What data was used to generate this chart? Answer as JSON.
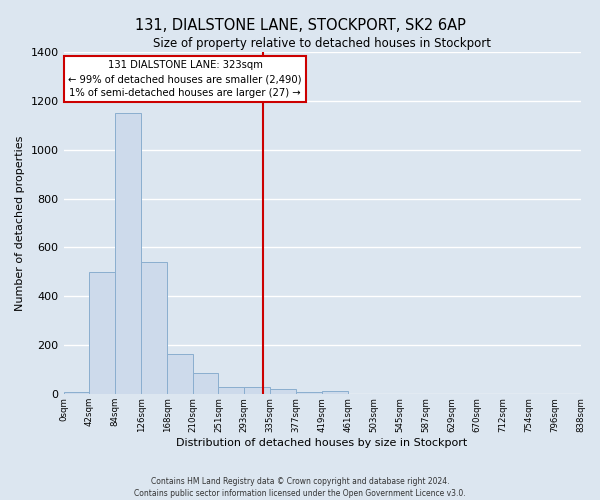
{
  "title": "131, DIALSTONE LANE, STOCKPORT, SK2 6AP",
  "subtitle": "Size of property relative to detached houses in Stockport",
  "xlabel": "Distribution of detached houses by size in Stockport",
  "ylabel": "Number of detached properties",
  "bar_edges": [
    0,
    42,
    84,
    126,
    168,
    210,
    251,
    293,
    335,
    377,
    419,
    461,
    503,
    545,
    587,
    629,
    670,
    712,
    754,
    796,
    838
  ],
  "bar_heights": [
    10,
    500,
    1150,
    540,
    165,
    85,
    28,
    28,
    22,
    10,
    12,
    0,
    0,
    0,
    0,
    0,
    0,
    0,
    0,
    0
  ],
  "tick_labels": [
    "0sqm",
    "42sqm",
    "84sqm",
    "126sqm",
    "168sqm",
    "210sqm",
    "251sqm",
    "293sqm",
    "335sqm",
    "377sqm",
    "419sqm",
    "461sqm",
    "503sqm",
    "545sqm",
    "587sqm",
    "629sqm",
    "670sqm",
    "712sqm",
    "754sqm",
    "796sqm",
    "838sqm"
  ],
  "bar_color": "#cddaeb",
  "bar_edge_color": "#8aaecf",
  "vline_x": 323,
  "vline_color": "#cc0000",
  "annotation_title": "131 DIALSTONE LANE: 323sqm",
  "annotation_line1": "← 99% of detached houses are smaller (2,490)",
  "annotation_line2": "1% of semi-detached houses are larger (27) →",
  "annotation_box_color": "#ffffff",
  "annotation_box_edge": "#cc0000",
  "bg_color": "#dce6f0",
  "grid_color": "#ffffff",
  "ylim": [
    0,
    1400
  ],
  "yticks": [
    0,
    200,
    400,
    600,
    800,
    1000,
    1200,
    1400
  ],
  "footer1": "Contains HM Land Registry data © Crown copyright and database right 2024.",
  "footer2": "Contains public sector information licensed under the Open Government Licence v3.0."
}
